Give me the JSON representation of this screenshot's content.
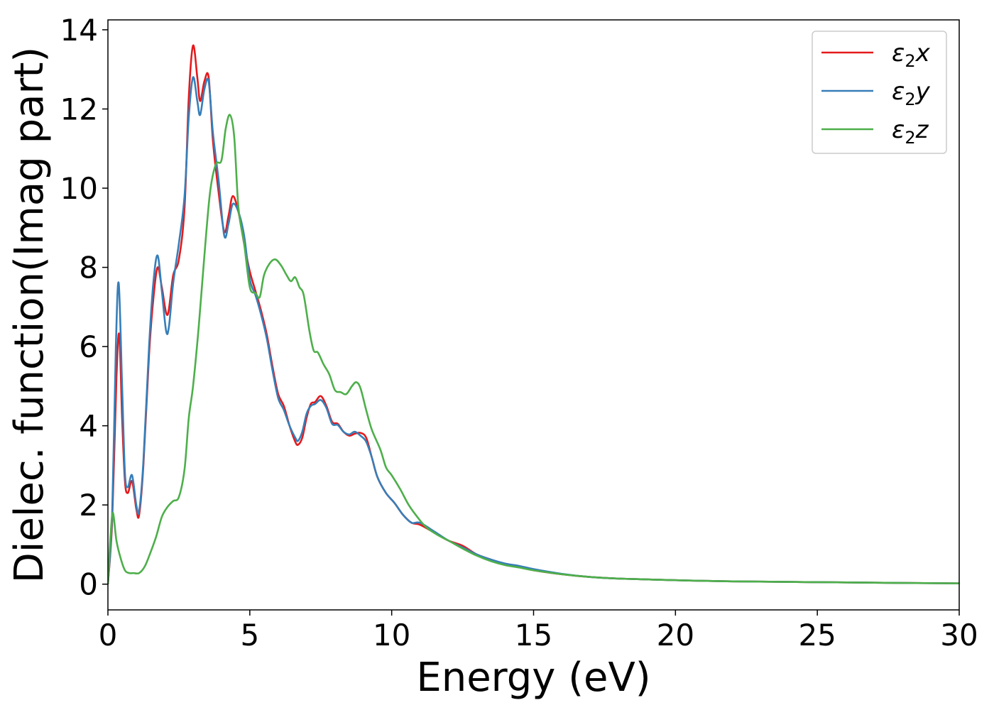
{
  "chart_data": {
    "type": "line",
    "xlabel": "Energy (eV)",
    "ylabel": "Dielec. function(Imag part)",
    "xlim": [
      0,
      30
    ],
    "ylim": [
      -0.65,
      14.25
    ],
    "xticks": [
      0,
      5,
      10,
      15,
      20,
      25,
      30
    ],
    "yticks": [
      0,
      2,
      4,
      6,
      8,
      10,
      12,
      14
    ],
    "grid": false,
    "legend_position": "top-right",
    "series": [
      {
        "name": "ε2x",
        "legend": {
          "base": "ε",
          "sub": "2",
          "tail": "x"
        },
        "color": "#e41a1c",
        "points": [
          [
            0,
            0
          ],
          [
            0.15,
            1.6
          ],
          [
            0.3,
            5.2
          ],
          [
            0.4,
            6.3
          ],
          [
            0.5,
            4.2
          ],
          [
            0.6,
            2.6
          ],
          [
            0.7,
            2.3
          ],
          [
            0.85,
            2.6
          ],
          [
            1.0,
            1.9
          ],
          [
            1.1,
            1.75
          ],
          [
            1.25,
            3.0
          ],
          [
            1.45,
            5.8
          ],
          [
            1.6,
            7.2
          ],
          [
            1.75,
            8.0
          ],
          [
            1.9,
            7.5
          ],
          [
            2.1,
            6.8
          ],
          [
            2.3,
            7.8
          ],
          [
            2.5,
            8.2
          ],
          [
            2.7,
            9.5
          ],
          [
            2.85,
            12.3
          ],
          [
            3.0,
            13.6
          ],
          [
            3.15,
            12.8
          ],
          [
            3.25,
            12.2
          ],
          [
            3.4,
            12.7
          ],
          [
            3.55,
            12.8
          ],
          [
            3.7,
            11.2
          ],
          [
            3.9,
            9.9
          ],
          [
            4.1,
            8.9
          ],
          [
            4.25,
            9.3
          ],
          [
            4.4,
            9.8
          ],
          [
            4.6,
            9.4
          ],
          [
            4.8,
            8.6
          ],
          [
            5.0,
            7.9
          ],
          [
            5.2,
            7.4
          ],
          [
            5.4,
            6.9
          ],
          [
            5.6,
            6.3
          ],
          [
            5.8,
            5.5
          ],
          [
            6.0,
            4.8
          ],
          [
            6.2,
            4.5
          ],
          [
            6.4,
            4.0
          ],
          [
            6.6,
            3.6
          ],
          [
            6.7,
            3.52
          ],
          [
            6.85,
            3.7
          ],
          [
            7.0,
            4.2
          ],
          [
            7.15,
            4.55
          ],
          [
            7.3,
            4.6
          ],
          [
            7.5,
            4.75
          ],
          [
            7.7,
            4.5
          ],
          [
            7.9,
            4.1
          ],
          [
            8.1,
            4.05
          ],
          [
            8.3,
            3.85
          ],
          [
            8.5,
            3.75
          ],
          [
            8.7,
            3.8
          ],
          [
            8.9,
            3.82
          ],
          [
            9.1,
            3.7
          ],
          [
            9.3,
            3.2
          ],
          [
            9.5,
            2.7
          ],
          [
            9.8,
            2.3
          ],
          [
            10.1,
            2.05
          ],
          [
            10.4,
            1.75
          ],
          [
            10.7,
            1.55
          ],
          [
            11.0,
            1.5
          ],
          [
            11.5,
            1.3
          ],
          [
            12.0,
            1.1
          ],
          [
            12.5,
            0.97
          ],
          [
            13.0,
            0.75
          ],
          [
            13.5,
            0.62
          ],
          [
            14.0,
            0.5
          ],
          [
            14.5,
            0.44
          ],
          [
            15.0,
            0.35
          ],
          [
            16.0,
            0.25
          ],
          [
            17.0,
            0.18
          ],
          [
            18.0,
            0.14
          ],
          [
            20.0,
            0.1
          ],
          [
            22.0,
            0.07
          ],
          [
            25.0,
            0.05
          ],
          [
            28.0,
            0.03
          ],
          [
            30.0,
            0.02
          ]
        ]
      },
      {
        "name": "ε2y",
        "legend": {
          "base": "ε",
          "sub": "2",
          "tail": "y"
        },
        "color": "#377eb8",
        "points": [
          [
            0,
            0
          ],
          [
            0.15,
            1.8
          ],
          [
            0.28,
            6.0
          ],
          [
            0.38,
            7.6
          ],
          [
            0.5,
            5.0
          ],
          [
            0.6,
            2.8
          ],
          [
            0.7,
            2.45
          ],
          [
            0.85,
            2.75
          ],
          [
            1.0,
            2.0
          ],
          [
            1.1,
            1.85
          ],
          [
            1.25,
            3.1
          ],
          [
            1.45,
            6.0
          ],
          [
            1.6,
            7.6
          ],
          [
            1.75,
            8.3
          ],
          [
            1.9,
            7.4
          ],
          [
            2.05,
            6.4
          ],
          [
            2.15,
            6.5
          ],
          [
            2.3,
            7.6
          ],
          [
            2.5,
            8.6
          ],
          [
            2.7,
            9.8
          ],
          [
            2.85,
            11.8
          ],
          [
            3.0,
            12.8
          ],
          [
            3.15,
            12.2
          ],
          [
            3.25,
            11.85
          ],
          [
            3.4,
            12.5
          ],
          [
            3.55,
            12.7
          ],
          [
            3.7,
            11.4
          ],
          [
            3.9,
            10.2
          ],
          [
            4.1,
            8.8
          ],
          [
            4.25,
            9.1
          ],
          [
            4.4,
            9.6
          ],
          [
            4.6,
            9.4
          ],
          [
            4.8,
            8.8
          ],
          [
            5.0,
            7.7
          ],
          [
            5.2,
            7.3
          ],
          [
            5.4,
            6.8
          ],
          [
            5.6,
            6.2
          ],
          [
            5.8,
            5.4
          ],
          [
            6.0,
            4.7
          ],
          [
            6.2,
            4.4
          ],
          [
            6.4,
            4.0
          ],
          [
            6.6,
            3.7
          ],
          [
            6.7,
            3.62
          ],
          [
            6.85,
            3.85
          ],
          [
            7.0,
            4.3
          ],
          [
            7.15,
            4.5
          ],
          [
            7.3,
            4.55
          ],
          [
            7.5,
            4.65
          ],
          [
            7.7,
            4.45
          ],
          [
            7.9,
            4.05
          ],
          [
            8.1,
            4.02
          ],
          [
            8.3,
            3.85
          ],
          [
            8.5,
            3.78
          ],
          [
            8.7,
            3.85
          ],
          [
            8.9,
            3.75
          ],
          [
            9.1,
            3.6
          ],
          [
            9.3,
            3.2
          ],
          [
            9.5,
            2.7
          ],
          [
            9.8,
            2.3
          ],
          [
            10.1,
            2.05
          ],
          [
            10.4,
            1.75
          ],
          [
            10.7,
            1.55
          ],
          [
            11.0,
            1.55
          ],
          [
            11.5,
            1.33
          ],
          [
            12.0,
            1.1
          ],
          [
            12.5,
            0.93
          ],
          [
            13.0,
            0.75
          ],
          [
            13.5,
            0.62
          ],
          [
            14.0,
            0.52
          ],
          [
            14.5,
            0.46
          ],
          [
            15.0,
            0.38
          ],
          [
            16.0,
            0.26
          ],
          [
            17.0,
            0.18
          ],
          [
            18.0,
            0.14
          ],
          [
            20.0,
            0.1
          ],
          [
            22.0,
            0.07
          ],
          [
            25.0,
            0.05
          ],
          [
            28.0,
            0.03
          ],
          [
            30.0,
            0.02
          ]
        ]
      },
      {
        "name": "ε2z",
        "legend": {
          "base": "ε",
          "sub": "2",
          "tail": "z"
        },
        "color": "#4daf4a",
        "points": [
          [
            0,
            0
          ],
          [
            0.1,
            1.3
          ],
          [
            0.18,
            1.8
          ],
          [
            0.3,
            1.1
          ],
          [
            0.45,
            0.65
          ],
          [
            0.6,
            0.35
          ],
          [
            0.75,
            0.28
          ],
          [
            0.9,
            0.28
          ],
          [
            1.1,
            0.28
          ],
          [
            1.3,
            0.45
          ],
          [
            1.5,
            0.8
          ],
          [
            1.7,
            1.2
          ],
          [
            1.9,
            1.7
          ],
          [
            2.1,
            1.95
          ],
          [
            2.3,
            2.1
          ],
          [
            2.5,
            2.2
          ],
          [
            2.7,
            2.9
          ],
          [
            2.85,
            4.2
          ],
          [
            3.0,
            5.0
          ],
          [
            3.2,
            6.5
          ],
          [
            3.4,
            8.3
          ],
          [
            3.6,
            9.9
          ],
          [
            3.8,
            10.6
          ],
          [
            4.0,
            10.7
          ],
          [
            4.15,
            11.5
          ],
          [
            4.3,
            11.85
          ],
          [
            4.45,
            11.3
          ],
          [
            4.6,
            9.5
          ],
          [
            4.8,
            8.6
          ],
          [
            5.0,
            7.5
          ],
          [
            5.2,
            7.35
          ],
          [
            5.35,
            7.25
          ],
          [
            5.5,
            7.8
          ],
          [
            5.7,
            8.1
          ],
          [
            5.9,
            8.2
          ],
          [
            6.1,
            8.05
          ],
          [
            6.3,
            7.8
          ],
          [
            6.45,
            7.65
          ],
          [
            6.6,
            7.75
          ],
          [
            6.75,
            7.5
          ],
          [
            6.9,
            7.3
          ],
          [
            7.1,
            6.4
          ],
          [
            7.25,
            5.9
          ],
          [
            7.4,
            5.85
          ],
          [
            7.6,
            5.55
          ],
          [
            7.8,
            5.3
          ],
          [
            8.0,
            4.9
          ],
          [
            8.2,
            4.85
          ],
          [
            8.4,
            4.8
          ],
          [
            8.6,
            5.0
          ],
          [
            8.75,
            5.1
          ],
          [
            8.9,
            4.95
          ],
          [
            9.1,
            4.4
          ],
          [
            9.3,
            3.9
          ],
          [
            9.6,
            3.4
          ],
          [
            9.8,
            2.95
          ],
          [
            10.0,
            2.75
          ],
          [
            10.3,
            2.4
          ],
          [
            10.6,
            2.0
          ],
          [
            10.9,
            1.7
          ],
          [
            11.2,
            1.45
          ],
          [
            11.6,
            1.25
          ],
          [
            12.0,
            1.1
          ],
          [
            12.5,
            0.9
          ],
          [
            13.0,
            0.72
          ],
          [
            13.5,
            0.58
          ],
          [
            14.0,
            0.48
          ],
          [
            14.5,
            0.42
          ],
          [
            15.0,
            0.35
          ],
          [
            16.0,
            0.25
          ],
          [
            17.0,
            0.18
          ],
          [
            18.0,
            0.14
          ],
          [
            20.0,
            0.1
          ],
          [
            22.0,
            0.07
          ],
          [
            25.0,
            0.05
          ],
          [
            28.0,
            0.03
          ],
          [
            30.0,
            0.02
          ]
        ]
      }
    ]
  }
}
